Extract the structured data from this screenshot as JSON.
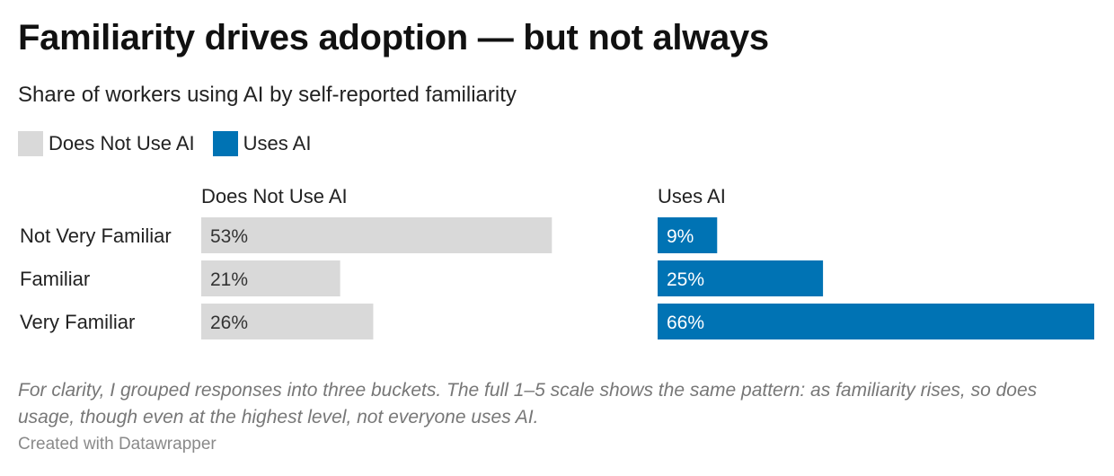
{
  "title": "Familiarity drives adoption — but not always",
  "subtitle": "Share of workers using AI by self-reported familiarity",
  "colors": {
    "does_not_use": "#d9d9d9",
    "uses": "#0073b4",
    "label_dark": "#333333",
    "label_light": "#ffffff"
  },
  "legend": [
    {
      "label": "Does Not Use AI",
      "color": "#d9d9d9"
    },
    {
      "label": "Uses AI",
      "color": "#0073b4"
    }
  ],
  "chart_data": {
    "type": "bar",
    "orientation": "horizontal",
    "layout": "split-panels",
    "categories": [
      "Not Very Familiar",
      "Familiar",
      "Very Familiar"
    ],
    "series": [
      {
        "name": "Does Not Use AI",
        "values": [
          53,
          21,
          26
        ],
        "labels": [
          "53%",
          "21%",
          "26%"
        ],
        "color": "#d9d9d9"
      },
      {
        "name": "Uses AI",
        "values": [
          9,
          25,
          66
        ],
        "labels": [
          "9%",
          "25%",
          "66%"
        ],
        "color": "#0073b4"
      }
    ],
    "unit": "%",
    "xlim": [
      0,
      66
    ],
    "grid": false
  },
  "footnote": "For clarity, I grouped responses into three buckets. The full 1–5 scale shows the same pattern: as familiarity rises, so does usage, though even at the highest level, not everyone uses AI.",
  "credit": "Created with Datawrapper"
}
